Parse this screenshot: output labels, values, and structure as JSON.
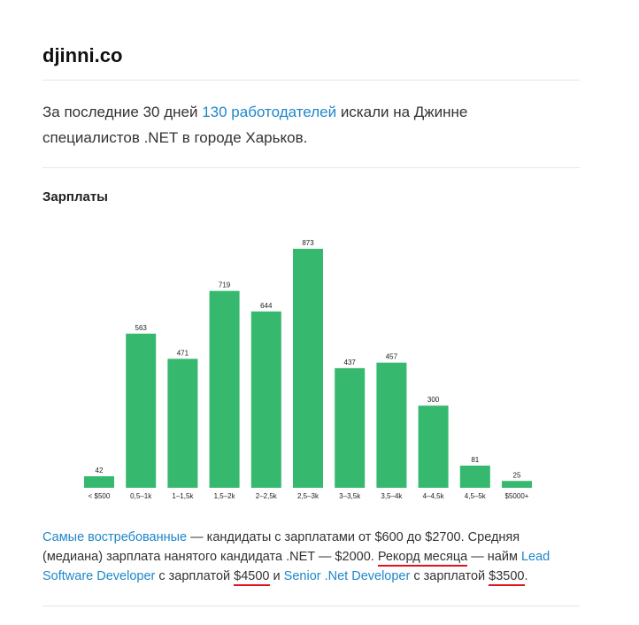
{
  "header": {
    "title": "djinni.co"
  },
  "intro": {
    "before": "За последние 30 дней",
    "link": "130 работодателей",
    "after": "искали на Джинне специалистов .NET в городе Харьков."
  },
  "section": {
    "title": "Зарплаты"
  },
  "chart_data": {
    "type": "bar",
    "categories": [
      "< $500",
      "0,5–1k",
      "1–1,5k",
      "1,5–2k",
      "2–2,5k",
      "2,5–3k",
      "3–3,5k",
      "3,5–4k",
      "4–4,5k",
      "4,5–5k",
      "$5000+"
    ],
    "values": [
      42,
      563,
      471,
      719,
      644,
      873,
      437,
      457,
      300,
      81,
      25
    ],
    "color": "#36b86f"
  },
  "summary": [
    "Самые востребованные",
    "— кандидаты с зарплатами от $600 до $2700. Средняя (медиана) зарплата нанятого кандидата .NET — $2000.",
    "Рекорд месяца",
    "— найм",
    "Lead Software Developer",
    "с зарплатой",
    "$4500",
    "и",
    "Senior .Net Developer",
    "с зарплатой",
    "$3500",
    "."
  ]
}
